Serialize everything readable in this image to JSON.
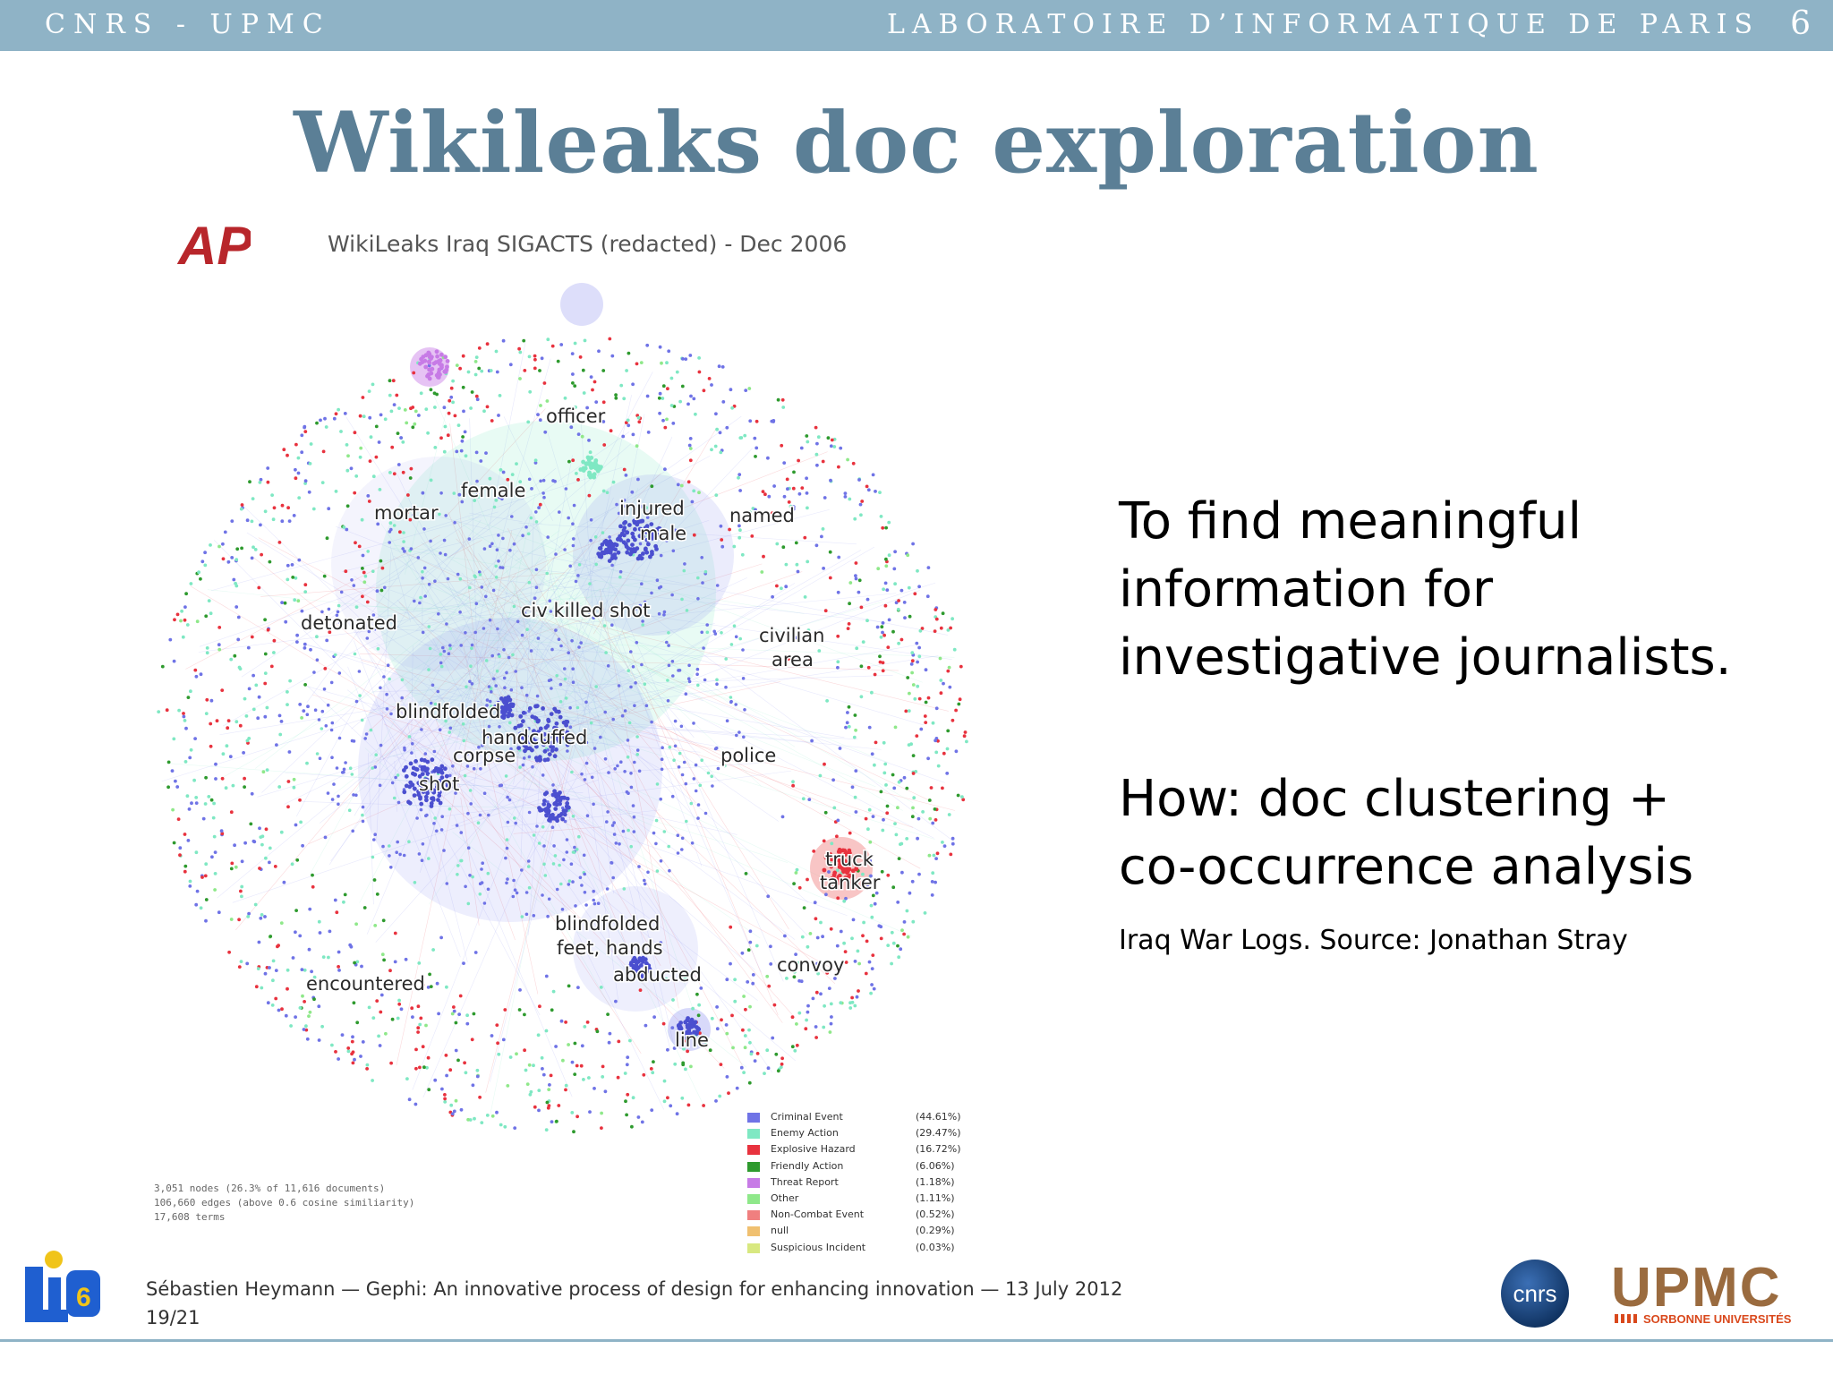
{
  "header": {
    "left": "CNRS - UPMC",
    "right": "LABORATOIRE D’INFORMATIQUE DE PARIS",
    "number": "6"
  },
  "slide": {
    "title": "Wikileaks doc exploration"
  },
  "figure": {
    "logo_text": "AP",
    "title": "WikiLeaks Iraq SIGACTS (redacted) - Dec 2006",
    "labels": {
      "officer": "officer",
      "female": "female",
      "mortar": "mortar",
      "injured": "injured",
      "male": "male",
      "named": "named",
      "civ_killed_shot": "civ killed shot",
      "detonated": "detonated",
      "civilian": "civilian",
      "area": "area",
      "blindfolded": "blindfolded",
      "handcuffed": "handcuffed",
      "corpse": "corpse",
      "police": "police",
      "shot": "shot",
      "truck": "truck",
      "tanker": "tanker",
      "blindfolded2": "blindfolded",
      "feet_hands": "feet, hands",
      "convoy": "convoy",
      "abducted": "abducted",
      "encountered": "encountered",
      "line": "line"
    },
    "stats": [
      "3,051 nodes (26.3% of 11,616 documents)",
      "106,660 edges (above 0.6 cosine similiarity)",
      "17,608 terms"
    ],
    "legend": [
      {
        "name": "Criminal Event",
        "pct": "(44.61%)",
        "color": "#6f73e6"
      },
      {
        "name": "Enemy Action",
        "pct": "(29.47%)",
        "color": "#7fe8c3"
      },
      {
        "name": "Explosive Hazard",
        "pct": "(16.72%)",
        "color": "#e8323e"
      },
      {
        "name": "Friendly Action",
        "pct": "(6.06%)",
        "color": "#2e9a2e"
      },
      {
        "name": "Threat Report",
        "pct": "(1.18%)",
        "color": "#c77be6"
      },
      {
        "name": "Other",
        "pct": "(1.11%)",
        "color": "#8fe88a"
      },
      {
        "name": "Non-Combat Event",
        "pct": "(0.52%)",
        "color": "#f07f7f"
      },
      {
        "name": "null",
        "pct": "(0.29%)",
        "color": "#f0c070"
      },
      {
        "name": "Suspicious Incident",
        "pct": "(0.03%)",
        "color": "#d8e880"
      }
    ]
  },
  "body": {
    "line1": "To find meaningful",
    "line2": "information for",
    "line3": "investigative journalists.",
    "how1": "How:  doc clustering +",
    "how2": "co-occurrence analysis",
    "source": "Iraq War Logs.  Source:  Jonathan Stray"
  },
  "footer": {
    "citation": "Sébastien Heymann — Gephi:  An innovative process of design for enhancing innovation — 13 July 2012",
    "page": "19/21",
    "lip6_text": "LIP6",
    "cnrs_text": "CNRS",
    "upmc_text": "UPMC",
    "upmc_sub": "SORBONNE UNIVERSITÉS"
  }
}
